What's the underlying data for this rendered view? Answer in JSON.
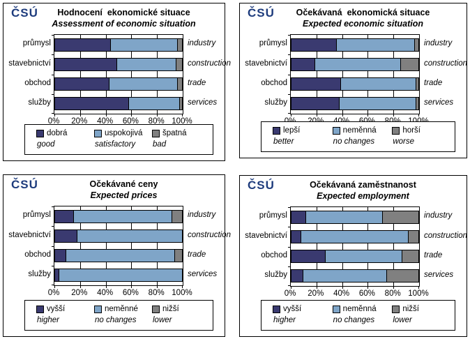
{
  "logo_text": "ČSÚ",
  "colors": {
    "series_dark": "#3A3A70",
    "series_light": "#7FA5C8",
    "series_gray": "#808080",
    "logo": "#1E3C7D",
    "border": "#000000",
    "background": "#FFFFFF"
  },
  "chart_data": [
    {
      "id": "assessment-of-economic-situation",
      "type": "bar",
      "stacked": true,
      "orientation": "horizontal",
      "grid": true,
      "legend_position": "bottom",
      "title_cs": "Hodnocení  ekonomické situace",
      "title_en": "Assessment of economic situation",
      "categories_cs": [
        "průmysl",
        "stavebnictví",
        "obchod",
        "služby"
      ],
      "categories_en": [
        "industry",
        "construction",
        "trade",
        "services"
      ],
      "xlim": [
        0,
        100
      ],
      "x_ticks": [
        "0%",
        "20%",
        "40%",
        "60%",
        "80%",
        "100%"
      ],
      "series": [
        {
          "label_cs": "dobrá",
          "label_en": "good",
          "color_key": "series_dark",
          "values": [
            44,
            49,
            43,
            58
          ]
        },
        {
          "label_cs": "uspokojivá",
          "label_en": "satisfactory",
          "color_key": "series_light",
          "values": [
            52,
            46,
            53,
            40
          ]
        },
        {
          "label_cs": "špatná",
          "label_en": "bad",
          "color_key": "series_gray",
          "values": [
            4,
            5,
            4,
            2
          ]
        }
      ]
    },
    {
      "id": "expected-economic-situation",
      "type": "bar",
      "stacked": true,
      "orientation": "horizontal",
      "grid": true,
      "legend_position": "bottom",
      "title_cs": "Očekávaná  ekonomická situace",
      "title_en": "Expected economic situation",
      "categories_cs": [
        "průmysl",
        "stavebnictví",
        "obchod",
        "služby"
      ],
      "categories_en": [
        "industry",
        "construction",
        "trade",
        "services"
      ],
      "xlim": [
        0,
        100
      ],
      "x_ticks": [
        "0%",
        "20%",
        "40%",
        "60%",
        "80%",
        "100%"
      ],
      "series": [
        {
          "label_cs": "lepší",
          "label_en": "better",
          "color_key": "series_dark",
          "values": [
            36,
            19,
            39,
            38
          ]
        },
        {
          "label_cs": "neměnná",
          "label_en": "no changes",
          "color_key": "series_light",
          "values": [
            61,
            67,
            59,
            60
          ]
        },
        {
          "label_cs": "horší",
          "label_en": "worse",
          "color_key": "series_gray",
          "values": [
            3,
            14,
            2,
            2
          ]
        }
      ]
    },
    {
      "id": "expected-prices",
      "type": "bar",
      "stacked": true,
      "orientation": "horizontal",
      "grid": true,
      "legend_position": "bottom",
      "title_cs": "Očekávané ceny",
      "title_en": "Expected prices",
      "categories_cs": [
        "průmysl",
        "stavebnictví",
        "obchod",
        "služby"
      ],
      "categories_en": [
        "industry",
        "construction",
        "trade",
        "services"
      ],
      "xlim": [
        0,
        100
      ],
      "x_ticks": [
        "0%",
        "20%",
        "40%",
        "60%",
        "80%",
        "100%"
      ],
      "series": [
        {
          "label_cs": "vyšší",
          "label_en": "higher",
          "color_key": "series_dark",
          "values": [
            15,
            18,
            9,
            4
          ]
        },
        {
          "label_cs": "neměnné",
          "label_en": "no changes",
          "color_key": "series_light",
          "values": [
            77,
            82,
            85,
            96
          ]
        },
        {
          "label_cs": "nižší",
          "label_en": "lower",
          "color_key": "series_gray",
          "values": [
            8,
            0,
            6,
            0
          ]
        }
      ]
    },
    {
      "id": "expected-employment",
      "type": "bar",
      "stacked": true,
      "orientation": "horizontal",
      "grid": true,
      "legend_position": "bottom",
      "title_cs": "Očekávaná zaměstnanost",
      "title_en": "Expected employment",
      "categories_cs": [
        "průmysl",
        "stavebnictví",
        "obchod",
        "služby"
      ],
      "categories_en": [
        "industry",
        "construction",
        "trade",
        "services"
      ],
      "xlim": [
        0,
        100
      ],
      "x_ticks": [
        "0%",
        "20%",
        "40%",
        "60%",
        "80%",
        "100%"
      ],
      "series": [
        {
          "label_cs": "vyšší",
          "label_en": "higher",
          "color_key": "series_dark",
          "values": [
            12,
            8,
            27,
            10
          ]
        },
        {
          "label_cs": "neměnná",
          "label_en": "no changes",
          "color_key": "series_light",
          "values": [
            60,
            84,
            60,
            65
          ]
        },
        {
          "label_cs": "nižší",
          "label_en": "lower",
          "color_key": "series_gray",
          "values": [
            28,
            8,
            13,
            25
          ]
        }
      ]
    }
  ]
}
